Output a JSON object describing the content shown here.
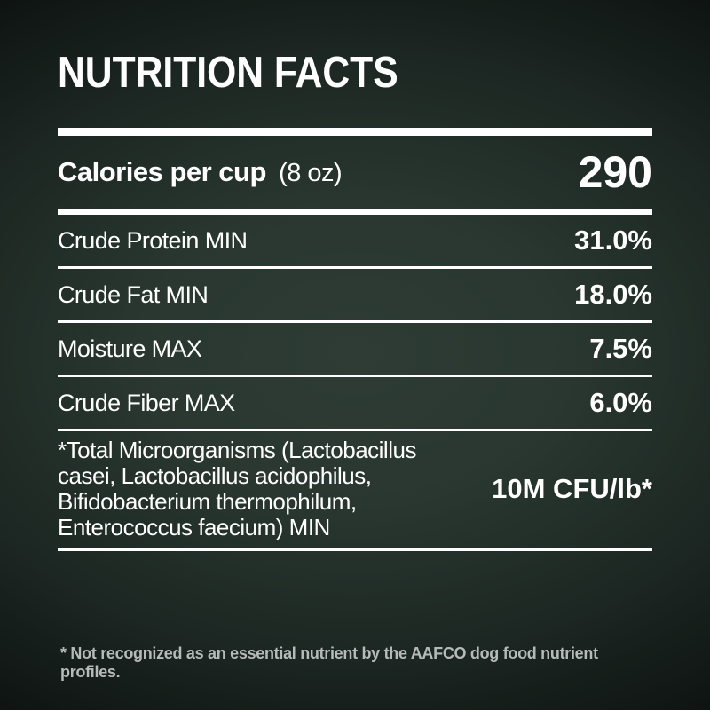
{
  "panel": {
    "title": "NUTRITION FACTS",
    "calories": {
      "label": "Calories per cup",
      "unit": "(8 oz)",
      "value": "290"
    },
    "rows": [
      {
        "label": "Crude Protein MIN",
        "value": "31.0%"
      },
      {
        "label": "Crude Fat MIN",
        "value": "18.0%"
      },
      {
        "label": "Moisture MAX",
        "value": "7.5%"
      },
      {
        "label": "Crude Fiber MAX",
        "value": "6.0%"
      }
    ],
    "microorganisms": {
      "label": "*Total Microorganisms (Lactobacillus casei, Lactobacillus acidophilus, Bifidobacterium thermophilum, Enterococcus faecium) MIN",
      "value": "10M CFU/lb*"
    },
    "footnote": "* Not recognized as an essential nutrient by the AAFCO dog food nutrient profiles.",
    "colors": {
      "background_center": "#2e3c35",
      "background_edge": "#020303",
      "text": "#ffffff",
      "divider": "#ffffff",
      "footnote_text": "#b6bab8"
    }
  }
}
